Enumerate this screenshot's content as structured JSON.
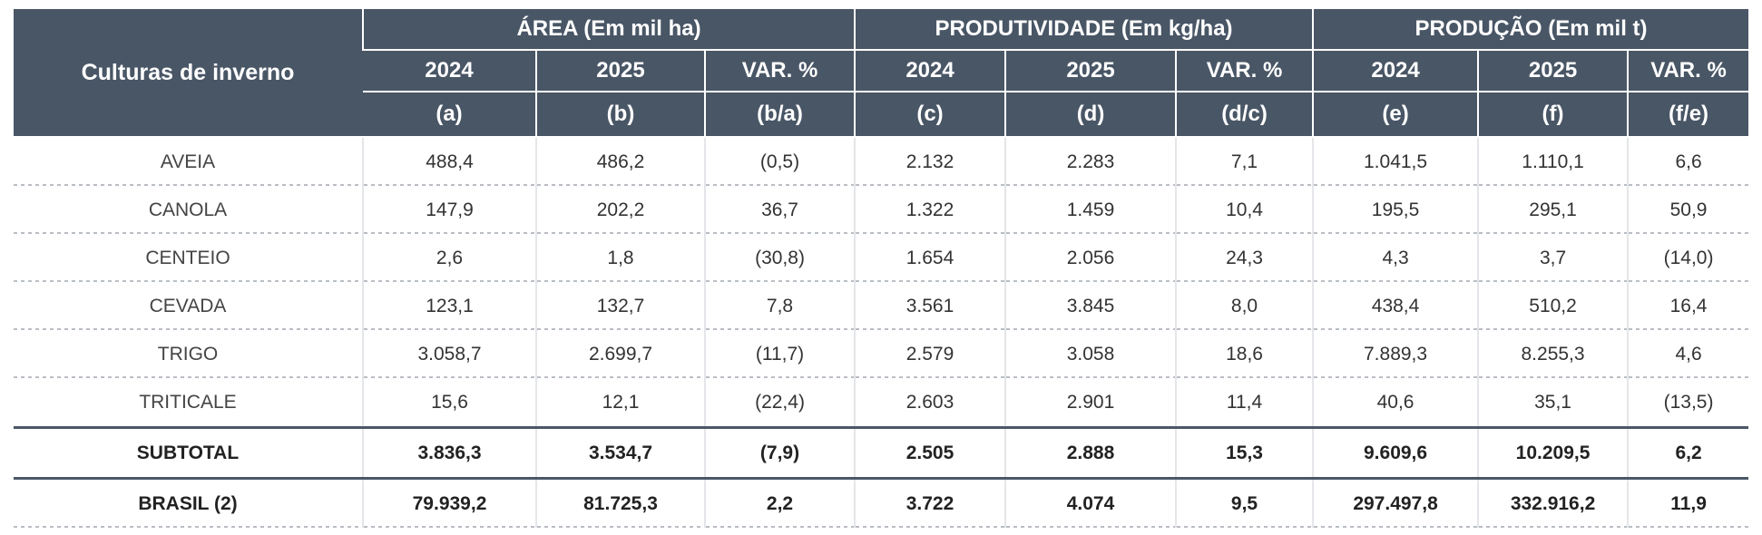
{
  "header": {
    "culturas_label": "Culturas de inverno",
    "groups": [
      {
        "title": "ÁREA (Em mil ha)"
      },
      {
        "title": "PRODUTIVIDADE (Em kg/ha)"
      },
      {
        "title": "PRODUÇÃO (Em mil t)"
      }
    ],
    "years": [
      "2024",
      "2025",
      "VAR. %",
      "2024",
      "2025",
      "VAR. %",
      "2024",
      "2025",
      "VAR. %"
    ],
    "codes": [
      "(a)",
      "(b)",
      "(b/a)",
      "(c)",
      "(d)",
      "(d/c)",
      "(e)",
      "(f)",
      "(f/e)"
    ]
  },
  "rows": [
    {
      "name": "AVEIA",
      "values": [
        "488,4",
        "486,2",
        "(0,5)",
        "2.132",
        "2.283",
        "7,1",
        "1.041,5",
        "1.110,1",
        "6,6"
      ]
    },
    {
      "name": "CANOLA",
      "values": [
        "147,9",
        "202,2",
        "36,7",
        "1.322",
        "1.459",
        "10,4",
        "195,5",
        "295,1",
        "50,9"
      ]
    },
    {
      "name": "CENTEIO",
      "values": [
        "2,6",
        "1,8",
        "(30,8)",
        "1.654",
        "2.056",
        "24,3",
        "4,3",
        "3,7",
        "(14,0)"
      ]
    },
    {
      "name": "CEVADA",
      "values": [
        "123,1",
        "132,7",
        "7,8",
        "3.561",
        "3.845",
        "8,0",
        "438,4",
        "510,2",
        "16,4"
      ]
    },
    {
      "name": "TRIGO",
      "values": [
        "3.058,7",
        "2.699,7",
        "(11,7)",
        "2.579",
        "3.058",
        "18,6",
        "7.889,3",
        "8.255,3",
        "4,6"
      ]
    },
    {
      "name": "TRITICALE",
      "values": [
        "15,6",
        "12,1",
        "(22,4)",
        "2.603",
        "2.901",
        "11,4",
        "40,6",
        "35,1",
        "(13,5)"
      ]
    }
  ],
  "subtotal": {
    "name": "SUBTOTAL",
    "values": [
      "3.836,3",
      "3.534,7",
      "(7,9)",
      "2.505",
      "2.888",
      "15,3",
      "9.609,6",
      "10.209,5",
      "6,2"
    ]
  },
  "brasil": {
    "name": "BRASIL (2)",
    "values": [
      "79.939,2",
      "81.725,3",
      "2,2",
      "3.722",
      "4.074",
      "9,5",
      "297.497,8",
      "332.916,2",
      "11,9"
    ]
  },
  "colors": {
    "header_bg": "#495666",
    "rule": "#4b5767"
  }
}
